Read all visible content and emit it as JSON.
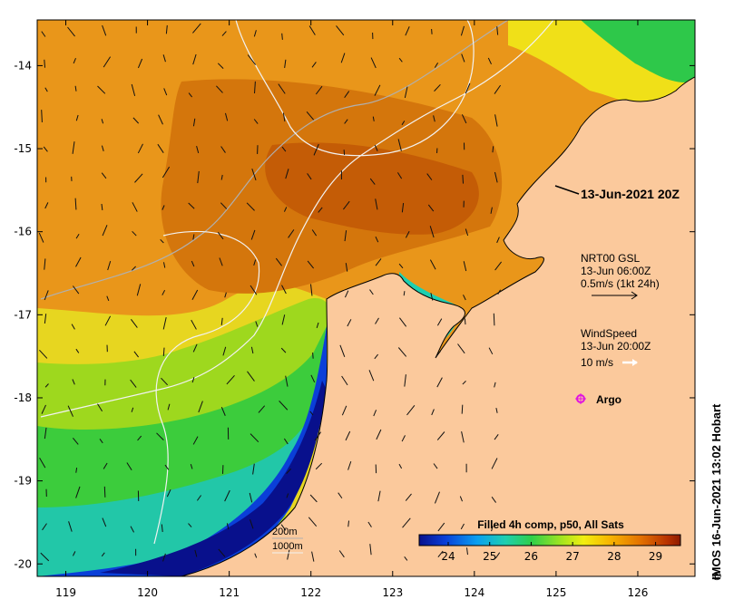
{
  "map": {
    "lon_ticks": [
      "119",
      "120",
      "121",
      "122",
      "123",
      "124",
      "125",
      "126"
    ],
    "lat_ticks": [
      "-14",
      "-15",
      "-16",
      "-17",
      "-18",
      "-19",
      "-20"
    ],
    "lon_range": [
      118.65,
      126.7
    ],
    "lat_range": [
      -20.15,
      -13.45
    ],
    "colors": {
      "land": "#fbc99c",
      "frame": "#000000",
      "isobath": "#c8c8c8",
      "deep": "#08108c"
    }
  },
  "annotations": {
    "timestamp": "13-Jun-2021 20Z",
    "gsl_title": "NRT00 GSL",
    "gsl_time": "13-Jun 06:00Z",
    "gsl_scale": "0.5m/s (1kt 24h)",
    "wind_title": "WindSpeed",
    "wind_time": "13-Jun 20:00Z",
    "wind_scale": "10 m/s",
    "argo_label": "Argo",
    "isobath_200": "200m",
    "isobath_1000": "1000m"
  },
  "colorbar": {
    "title": "Filled 4h comp, p50, All Sats",
    "min": 23.3,
    "max": 29.6,
    "ticks": [
      "24",
      "25",
      "26",
      "27",
      "28",
      "29"
    ]
  },
  "credit": "IMOS 16-Jun-2021 13:02 Hobart",
  "credit_symbol": "©"
}
